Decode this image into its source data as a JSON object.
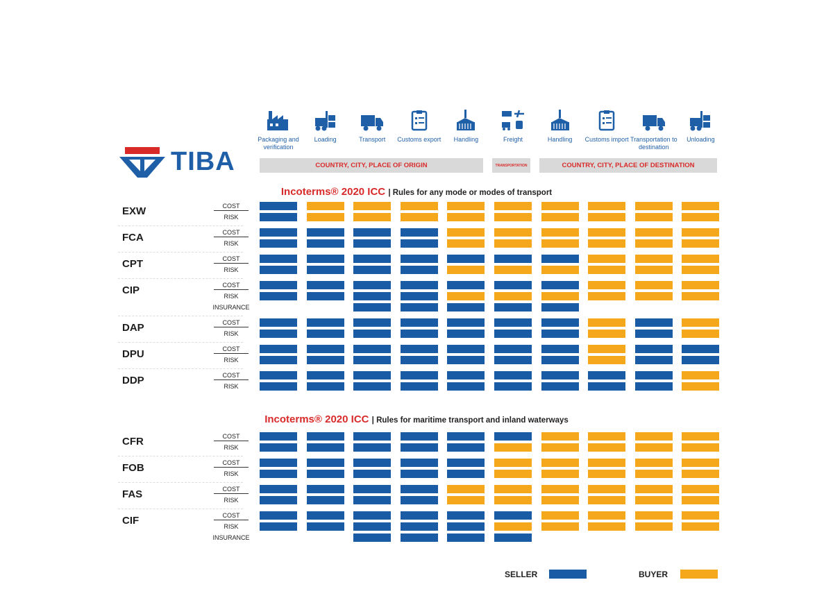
{
  "header": {
    "brand": "TIBA",
    "columns": [
      "Packaging and verification",
      "Loading",
      "Transport",
      "Customs export",
      "Handling",
      "Freight",
      "Handling",
      "Customs import",
      "Transportation to destination",
      "Unloading"
    ],
    "zones": {
      "origin": "COUNTRY, CITY, PLACE OF ORIGIN",
      "transport": "TRANSPORTATION",
      "destination": "COUNTRY, CITY, PLACE OF DESTINATION"
    }
  },
  "sections": [
    {
      "title": "Incoterms® 2020 ICC",
      "subtitle": "| Rules for any mode or modes of transport",
      "terms": [
        {
          "name": "EXW",
          "rows": [
            {
              "label": "COST",
              "cells": [
                "#1a5ba6",
                "#f5a81c",
                "#f5a81c",
                "#f5a81c",
                "#f5a81c",
                "#f5a81c",
                "#f5a81c",
                "#f5a81c",
                "#f5a81c",
                "#f5a81c"
              ]
            },
            {
              "label": "RISK",
              "cells": [
                "#1a5ba6",
                "#f5a81c",
                "#f5a81c",
                "#f5a81c",
                "#f5a81c",
                "#f5a81c",
                "#f5a81c",
                "#f5a81c",
                "#f5a81c",
                "#f5a81c"
              ]
            }
          ]
        },
        {
          "name": "FCA",
          "rows": [
            {
              "label": "COST",
              "cells": [
                "#1a5ba6",
                "#1a5ba6",
                "#1a5ba6",
                "#1a5ba6",
                "#f5a81c",
                "#f5a81c",
                "#f5a81c",
                "#f5a81c",
                "#f5a81c",
                "#f5a81c"
              ]
            },
            {
              "label": "RISK",
              "cells": [
                "#1a5ba6",
                "#1a5ba6",
                "#1a5ba6",
                "#1a5ba6",
                "#f5a81c",
                "#f5a81c",
                "#f5a81c",
                "#f5a81c",
                "#f5a81c",
                "#f5a81c"
              ]
            }
          ]
        },
        {
          "name": "CPT",
          "rows": [
            {
              "label": "COST",
              "cells": [
                "#1a5ba6",
                "#1a5ba6",
                "#1a5ba6",
                "#1a5ba6",
                "#1a5ba6",
                "#1a5ba6",
                "#1a5ba6",
                "#f5a81c",
                "#f5a81c",
                "#f5a81c"
              ]
            },
            {
              "label": "RISK",
              "cells": [
                "#1a5ba6",
                "#1a5ba6",
                "#1a5ba6",
                "#1a5ba6",
                "#f5a81c",
                "#f5a81c",
                "#f5a81c",
                "#f5a81c",
                "#f5a81c",
                "#f5a81c"
              ]
            }
          ]
        },
        {
          "name": "CIP",
          "rows": [
            {
              "label": "COST",
              "cells": [
                "#1a5ba6",
                "#1a5ba6",
                "#1a5ba6",
                "#1a5ba6",
                "#1a5ba6",
                "#1a5ba6",
                "#1a5ba6",
                "#f5a81c",
                "#f5a81c",
                "#f5a81c"
              ]
            },
            {
              "label": "RISK",
              "cells": [
                "#1a5ba6",
                "#1a5ba6",
                "#1a5ba6",
                "#1a5ba6",
                "#f5a81c",
                "#f5a81c",
                "#f5a81c",
                "#f5a81c",
                "#f5a81c",
                "#f5a81c"
              ]
            },
            {
              "label": "INSURANCE",
              "cells": [
                null,
                null,
                "#1a5ba6",
                "#1a5ba6",
                "#1a5ba6",
                "#1a5ba6",
                "#1a5ba6",
                null,
                null,
                null
              ]
            }
          ]
        },
        {
          "name": "DAP",
          "rows": [
            {
              "label": "COST",
              "cells": [
                "#1a5ba6",
                "#1a5ba6",
                "#1a5ba6",
                "#1a5ba6",
                "#1a5ba6",
                "#1a5ba6",
                "#1a5ba6",
                "#f5a81c",
                "#1a5ba6",
                "#f5a81c"
              ]
            },
            {
              "label": "RISK",
              "cells": [
                "#1a5ba6",
                "#1a5ba6",
                "#1a5ba6",
                "#1a5ba6",
                "#1a5ba6",
                "#1a5ba6",
                "#1a5ba6",
                "#f5a81c",
                "#1a5ba6",
                "#f5a81c"
              ]
            }
          ]
        },
        {
          "name": "DPU",
          "rows": [
            {
              "label": "COST",
              "cells": [
                "#1a5ba6",
                "#1a5ba6",
                "#1a5ba6",
                "#1a5ba6",
                "#1a5ba6",
                "#1a5ba6",
                "#1a5ba6",
                "#f5a81c",
                "#1a5ba6",
                "#1a5ba6"
              ]
            },
            {
              "label": "RISK",
              "cells": [
                "#1a5ba6",
                "#1a5ba6",
                "#1a5ba6",
                "#1a5ba6",
                "#1a5ba6",
                "#1a5ba6",
                "#1a5ba6",
                "#f5a81c",
                "#1a5ba6",
                "#1a5ba6"
              ]
            }
          ]
        },
        {
          "name": "DDP",
          "rows": [
            {
              "label": "COST",
              "cells": [
                "#1a5ba6",
                "#1a5ba6",
                "#1a5ba6",
                "#1a5ba6",
                "#1a5ba6",
                "#1a5ba6",
                "#1a5ba6",
                "#1a5ba6",
                "#1a5ba6",
                "#f5a81c"
              ]
            },
            {
              "label": "RISK",
              "cells": [
                "#1a5ba6",
                "#1a5ba6",
                "#1a5ba6",
                "#1a5ba6",
                "#1a5ba6",
                "#1a5ba6",
                "#1a5ba6",
                "#1a5ba6",
                "#1a5ba6",
                "#f5a81c"
              ]
            }
          ]
        }
      ]
    },
    {
      "title": "Incoterms® 2020 ICC",
      "subtitle": "| Rules for maritime transport and inland waterways",
      "terms": [
        {
          "name": "CFR",
          "rows": [
            {
              "label": "COST",
              "cells": [
                "#1a5ba6",
                "#1a5ba6",
                "#1a5ba6",
                "#1a5ba6",
                "#1a5ba6",
                "#1a5ba6",
                "#f5a81c",
                "#f5a81c",
                "#f5a81c",
                "#f5a81c"
              ]
            },
            {
              "label": "RISK",
              "cells": [
                "#1a5ba6",
                "#1a5ba6",
                "#1a5ba6",
                "#1a5ba6",
                "#1a5ba6",
                "#f5a81c",
                "#f5a81c",
                "#f5a81c",
                "#f5a81c",
                "#f5a81c"
              ]
            }
          ]
        },
        {
          "name": "FOB",
          "rows": [
            {
              "label": "COST",
              "cells": [
                "#1a5ba6",
                "#1a5ba6",
                "#1a5ba6",
                "#1a5ba6",
                "#1a5ba6",
                "#f5a81c",
                "#f5a81c",
                "#f5a81c",
                "#f5a81c",
                "#f5a81c"
              ]
            },
            {
              "label": "RISK",
              "cells": [
                "#1a5ba6",
                "#1a5ba6",
                "#1a5ba6",
                "#1a5ba6",
                "#1a5ba6",
                "#f5a81c",
                "#f5a81c",
                "#f5a81c",
                "#f5a81c",
                "#f5a81c"
              ]
            }
          ]
        },
        {
          "name": "FAS",
          "rows": [
            {
              "label": "COST",
              "cells": [
                "#1a5ba6",
                "#1a5ba6",
                "#1a5ba6",
                "#1a5ba6",
                "#f5a81c",
                "#f5a81c",
                "#f5a81c",
                "#f5a81c",
                "#f5a81c",
                "#f5a81c"
              ]
            },
            {
              "label": "RISK",
              "cells": [
                "#1a5ba6",
                "#1a5ba6",
                "#1a5ba6",
                "#1a5ba6",
                "#f5a81c",
                "#f5a81c",
                "#f5a81c",
                "#f5a81c",
                "#f5a81c",
                "#f5a81c"
              ]
            }
          ]
        },
        {
          "name": "CIF",
          "rows": [
            {
              "label": "COST",
              "cells": [
                "#1a5ba6",
                "#1a5ba6",
                "#1a5ba6",
                "#1a5ba6",
                "#1a5ba6",
                "#1a5ba6",
                "#f5a81c",
                "#f5a81c",
                "#f5a81c",
                "#f5a81c"
              ]
            },
            {
              "label": "RISK",
              "cells": [
                "#1a5ba6",
                "#1a5ba6",
                "#1a5ba6",
                "#1a5ba6",
                "#1a5ba6",
                "#f5a81c",
                "#f5a81c",
                "#f5a81c",
                "#f5a81c",
                "#f5a81c"
              ]
            },
            {
              "label": "INSURANCE",
              "cells": [
                null,
                null,
                "#1a5ba6",
                "#1a5ba6",
                "#1a5ba6",
                "#1a5ba6",
                null,
                null,
                null,
                null
              ]
            }
          ]
        }
      ]
    }
  ],
  "legend": [
    {
      "label": "SELLER",
      "color": "#1a5ba6"
    },
    {
      "label": "BUYER",
      "color": "#f5a81c"
    }
  ]
}
